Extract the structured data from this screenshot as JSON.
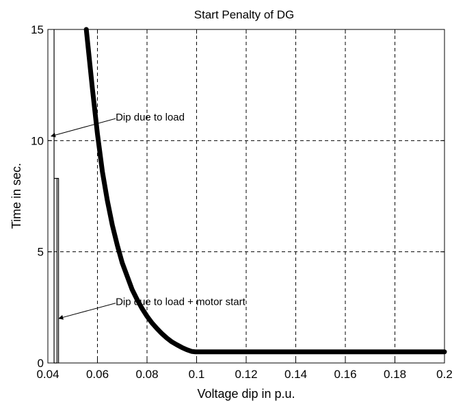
{
  "chart_data": {
    "type": "line",
    "title": "Start Penalty of DG",
    "xlabel": "Voltage dip in p.u.",
    "ylabel": "Time in sec.",
    "xlim": [
      0.04,
      0.2
    ],
    "ylim": [
      0,
      15
    ],
    "xticks": [
      0.04,
      0.06,
      0.08,
      0.1,
      0.12,
      0.14,
      0.16,
      0.18,
      0.2
    ],
    "xtick_labels": [
      "0.04",
      "0.06",
      "0.08",
      "0.1",
      "0.12",
      "0.14",
      "0.16",
      "0.18",
      "0.2"
    ],
    "yticks": [
      0,
      5,
      10,
      15
    ],
    "ytick_labels": [
      "0",
      "5",
      "10",
      "15"
    ],
    "grid": true,
    "series": [
      {
        "color": "#000000",
        "x": [
          0.0555,
          0.058,
          0.06,
          0.062,
          0.064,
          0.066,
          0.068,
          0.07,
          0.072,
          0.074,
          0.076,
          0.078,
          0.08,
          0.082,
          0.084,
          0.086,
          0.088,
          0.09,
          0.092,
          0.094,
          0.096,
          0.098,
          0.0995,
          0.12,
          0.14,
          0.16,
          0.18,
          0.2
        ],
        "y": [
          15.0,
          12.3,
          10.3,
          8.6,
          7.3,
          6.2,
          5.3,
          4.5,
          3.9,
          3.3,
          2.85,
          2.45,
          2.1,
          1.8,
          1.55,
          1.32,
          1.12,
          0.95,
          0.82,
          0.7,
          0.6,
          0.52,
          0.5,
          0.5,
          0.5,
          0.5,
          0.5,
          0.5
        ]
      },
      {
        "color": "#000000",
        "x": [
          0.0425,
          0.0425,
          0.0437,
          0.0437,
          0.0425,
          0.0425,
          0.0443,
          0.0443
        ],
        "y": [
          15.0,
          8.3,
          8.3,
          0.0,
          0.0,
          8.3,
          8.3,
          0.0
        ]
      }
    ],
    "annotations": [
      {
        "text": "Dip due to load",
        "x": 0.0665,
        "y": 10.9,
        "arrow_to": [
          0.0413,
          10.2
        ]
      },
      {
        "text": "Dip due to load + motor start",
        "x": 0.0665,
        "y": 2.6,
        "arrow_to": [
          0.0444,
          2.0
        ]
      }
    ]
  }
}
